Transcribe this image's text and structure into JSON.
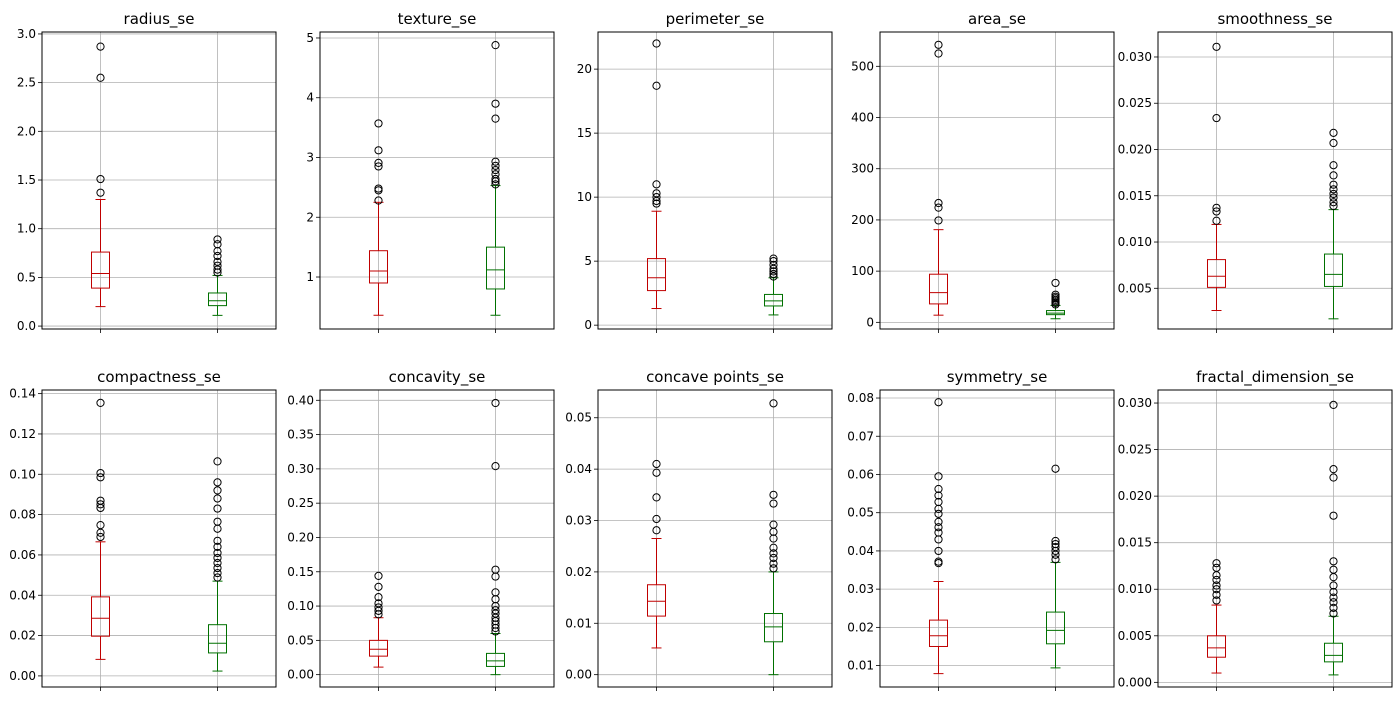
{
  "chart_data": [
    {
      "type": "box",
      "title": "radius_se",
      "ylim": [
        -0.03,
        3.02
      ],
      "yticks": [
        0.0,
        0.5,
        1.0,
        1.5,
        2.0,
        2.5,
        3.0
      ],
      "yticklabels": [
        "0.0",
        "0.5",
        "1.0",
        "1.5",
        "2.0",
        "2.5",
        "3.0"
      ],
      "boxes": [
        {
          "color": "#c00000",
          "q1": 0.39,
          "median": 0.54,
          "q3": 0.76,
          "whisker_low": 0.2,
          "whisker_high": 1.3,
          "outliers": [
            1.37,
            1.51,
            2.55,
            2.87
          ]
        },
        {
          "color": "#007000",
          "q1": 0.21,
          "median": 0.26,
          "q3": 0.34,
          "whisker_low": 0.11,
          "whisker_high": 0.52,
          "outliers": [
            0.55,
            0.58,
            0.62,
            0.66,
            0.72,
            0.77,
            0.84,
            0.89
          ]
        }
      ]
    },
    {
      "type": "box",
      "title": "texture_se",
      "ylim": [
        0.13,
        5.1
      ],
      "yticks": [
        1,
        2,
        3,
        4,
        5
      ],
      "yticklabels": [
        "1",
        "2",
        "3",
        "4",
        "5"
      ],
      "boxes": [
        {
          "color": "#c00000",
          "q1": 0.9,
          "median": 1.1,
          "q3": 1.44,
          "whisker_low": 0.36,
          "whisker_high": 2.25,
          "outliers": [
            2.28,
            2.45,
            2.48,
            2.85,
            2.91,
            3.12,
            3.57
          ]
        },
        {
          "color": "#007000",
          "q1": 0.8,
          "median": 1.12,
          "q3": 1.5,
          "whisker_low": 0.36,
          "whisker_high": 2.53,
          "outliers": [
            2.55,
            2.6,
            2.64,
            2.72,
            2.79,
            2.86,
            2.93,
            3.65,
            3.9,
            4.88
          ]
        }
      ]
    },
    {
      "type": "box",
      "title": "perimeter_se",
      "ylim": [
        -0.3,
        22.9
      ],
      "yticks": [
        0,
        5,
        10,
        15,
        20
      ],
      "yticklabels": [
        "0",
        "5",
        "10",
        "15",
        "20"
      ],
      "boxes": [
        {
          "color": "#c00000",
          "q1": 2.7,
          "median": 3.7,
          "q3": 5.2,
          "whisker_low": 1.3,
          "whisker_high": 8.9,
          "outliers": [
            9.5,
            9.7,
            10.0,
            10.3,
            11.0,
            18.7,
            22.0
          ]
        },
        {
          "color": "#007000",
          "q1": 1.5,
          "median": 1.9,
          "q3": 2.4,
          "whisker_low": 0.8,
          "whisker_high": 3.7,
          "outliers": [
            3.8,
            4.0,
            4.2,
            4.4,
            4.7,
            5.0,
            5.2
          ]
        }
      ]
    },
    {
      "type": "box",
      "title": "area_se",
      "ylim": [
        -13,
        567
      ],
      "yticks": [
        0,
        100,
        200,
        300,
        400,
        500
      ],
      "yticklabels": [
        "0",
        "100",
        "200",
        "300",
        "400",
        "500"
      ],
      "boxes": [
        {
          "color": "#c00000",
          "q1": 36,
          "median": 58,
          "q3": 94,
          "whisker_low": 14,
          "whisker_high": 181,
          "outliers": [
            199,
            224,
            233,
            525,
            542
          ]
        },
        {
          "color": "#007000",
          "q1": 15,
          "median": 18,
          "q3": 23,
          "whisker_low": 7,
          "whisker_high": 33,
          "outliers": [
            35,
            38,
            41,
            44,
            47,
            50,
            54,
            77
          ]
        }
      ]
    },
    {
      "type": "box",
      "title": "smoothness_se",
      "ylim": [
        0.0006,
        0.0327
      ],
      "yticks": [
        0.005,
        0.01,
        0.015,
        0.02,
        0.025,
        0.03
      ],
      "yticklabels": [
        "0.005",
        "0.010",
        "0.015",
        "0.020",
        "0.025",
        "0.030"
      ],
      "boxes": [
        {
          "color": "#c00000",
          "q1": 0.0051,
          "median": 0.0063,
          "q3": 0.0081,
          "whisker_low": 0.0026,
          "whisker_high": 0.0119,
          "outliers": [
            0.0123,
            0.0133,
            0.0137,
            0.0234,
            0.0311
          ]
        },
        {
          "color": "#007000",
          "q1": 0.0052,
          "median": 0.0065,
          "q3": 0.0087,
          "whisker_low": 0.0017,
          "whisker_high": 0.0135,
          "outliers": [
            0.0139,
            0.0143,
            0.0148,
            0.0152,
            0.0157,
            0.0162,
            0.0172,
            0.0183,
            0.0207,
            0.0218
          ]
        }
      ]
    },
    {
      "type": "box",
      "title": "compactness_se",
      "ylim": [
        -0.0055,
        0.1418
      ],
      "yticks": [
        0.0,
        0.02,
        0.04,
        0.06,
        0.08,
        0.1,
        0.12,
        0.14
      ],
      "yticklabels": [
        "0.00",
        "0.02",
        "0.04",
        "0.06",
        "0.08",
        "0.10",
        "0.12",
        "0.14"
      ],
      "boxes": [
        {
          "color": "#c00000",
          "q1": 0.0197,
          "median": 0.0286,
          "q3": 0.0392,
          "whisker_low": 0.0082,
          "whisker_high": 0.0665,
          "outliers": [
            0.0689,
            0.071,
            0.0748,
            0.0833,
            0.0851,
            0.0869,
            0.0985,
            0.1006,
            0.1354
          ]
        },
        {
          "color": "#007000",
          "q1": 0.0114,
          "median": 0.0162,
          "q3": 0.0254,
          "whisker_low": 0.0024,
          "whisker_high": 0.047,
          "outliers": [
            0.0488,
            0.051,
            0.0535,
            0.056,
            0.0585,
            0.061,
            0.064,
            0.067,
            0.073,
            0.0765,
            0.083,
            0.088,
            0.092,
            0.096,
            0.1064
          ]
        }
      ]
    },
    {
      "type": "box",
      "title": "concavity_se",
      "ylim": [
        -0.018,
        0.415
      ],
      "yticks": [
        0.0,
        0.05,
        0.1,
        0.15,
        0.2,
        0.25,
        0.3,
        0.35,
        0.4
      ],
      "yticklabels": [
        "0.00",
        "0.05",
        "0.10",
        "0.15",
        "0.20",
        "0.25",
        "0.30",
        "0.35",
        "0.40"
      ],
      "boxes": [
        {
          "color": "#c00000",
          "q1": 0.027,
          "median": 0.037,
          "q3": 0.05,
          "whisker_low": 0.011,
          "whisker_high": 0.083,
          "outliers": [
            0.088,
            0.093,
            0.098,
            0.104,
            0.113,
            0.128,
            0.144
          ]
        },
        {
          "color": "#007000",
          "q1": 0.012,
          "median": 0.02,
          "q3": 0.031,
          "whisker_low": 0.0,
          "whisker_high": 0.06,
          "outliers": [
            0.063,
            0.068,
            0.073,
            0.078,
            0.083,
            0.089,
            0.094,
            0.1,
            0.11,
            0.12,
            0.143,
            0.153,
            0.304,
            0.396
          ]
        }
      ]
    },
    {
      "type": "box",
      "title": "concave points_se",
      "ylim": [
        -0.0024,
        0.0554
      ],
      "yticks": [
        0.0,
        0.01,
        0.02,
        0.03,
        0.04,
        0.05
      ],
      "yticklabels": [
        "0.00",
        "0.01",
        "0.02",
        "0.03",
        "0.04",
        "0.05"
      ],
      "boxes": [
        {
          "color": "#c00000",
          "q1": 0.0114,
          "median": 0.0143,
          "q3": 0.0175,
          "whisker_low": 0.0052,
          "whisker_high": 0.0265,
          "outliers": [
            0.0281,
            0.0303,
            0.0345,
            0.0393,
            0.041
          ]
        },
        {
          "color": "#007000",
          "q1": 0.0064,
          "median": 0.0093,
          "q3": 0.0119,
          "whisker_low": 0.0,
          "whisker_high": 0.02,
          "outliers": [
            0.0207,
            0.0216,
            0.0227,
            0.0236,
            0.0247,
            0.0265,
            0.0278,
            0.0292,
            0.0333,
            0.035,
            0.0528
          ]
        }
      ]
    },
    {
      "type": "box",
      "title": "symmetry_se",
      "ylim": [
        0.0044,
        0.0821
      ],
      "yticks": [
        0.01,
        0.02,
        0.03,
        0.04,
        0.05,
        0.06,
        0.07,
        0.08
      ],
      "yticklabels": [
        "0.01",
        "0.02",
        "0.03",
        "0.04",
        "0.05",
        "0.06",
        "0.07",
        "0.08"
      ],
      "boxes": [
        {
          "color": "#c00000",
          "q1": 0.015,
          "median": 0.0178,
          "q3": 0.0219,
          "whisker_low": 0.0079,
          "whisker_high": 0.032,
          "outliers": [
            0.0368,
            0.0372,
            0.04,
            0.043,
            0.0448,
            0.0462,
            0.0476,
            0.0497,
            0.051,
            0.0528,
            0.0545,
            0.0562,
            0.0595,
            0.0789
          ]
        },
        {
          "color": "#007000",
          "q1": 0.0157,
          "median": 0.0192,
          "q3": 0.024,
          "whisker_low": 0.0094,
          "whisker_high": 0.037,
          "outliers": [
            0.0378,
            0.039,
            0.04,
            0.041,
            0.0418,
            0.0426,
            0.0615
          ]
        }
      ]
    },
    {
      "type": "box",
      "title": "fractal_dimension_se",
      "ylim": [
        -0.0005,
        0.0314
      ],
      "yticks": [
        0.0,
        0.005,
        0.01,
        0.015,
        0.02,
        0.025,
        0.03
      ],
      "yticklabels": [
        "0.000",
        "0.005",
        "0.010",
        "0.015",
        "0.020",
        "0.025",
        "0.030"
      ],
      "boxes": [
        {
          "color": "#c00000",
          "q1": 0.0027,
          "median": 0.0037,
          "q3": 0.005,
          "whisker_low": 0.001,
          "whisker_high": 0.0083,
          "outliers": [
            0.0088,
            0.0094,
            0.01,
            0.0104,
            0.011,
            0.0115,
            0.0123,
            0.0128
          ]
        },
        {
          "color": "#007000",
          "q1": 0.0022,
          "median": 0.0029,
          "q3": 0.0042,
          "whisker_low": 0.0008,
          "whisker_high": 0.0071,
          "outliers": [
            0.0074,
            0.008,
            0.0086,
            0.0091,
            0.0097,
            0.0104,
            0.0113,
            0.0121,
            0.013,
            0.0179,
            0.022,
            0.0229,
            0.0298
          ]
        }
      ]
    }
  ]
}
